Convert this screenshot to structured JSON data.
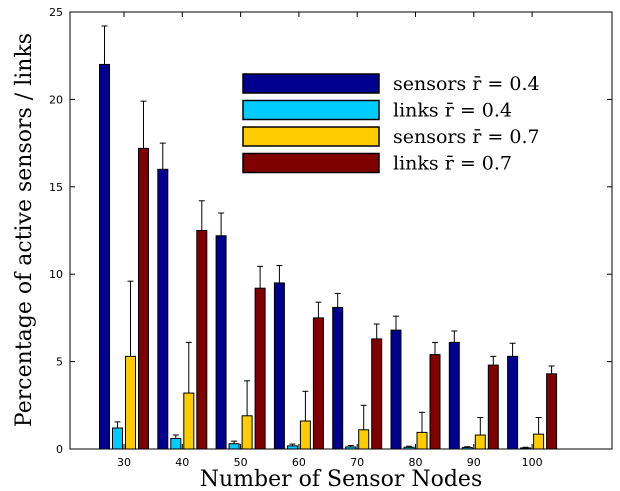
{
  "chart_data": {
    "type": "bar",
    "xlabel": "Number of Sensor Nodes",
    "ylabel": "Percentage of active sensors / links",
    "ylim": [
      0,
      25
    ],
    "yticks": [
      0,
      5,
      10,
      15,
      20,
      25
    ],
    "categories": [
      "30",
      "40",
      "50",
      "60",
      "70",
      "80",
      "90",
      "100"
    ],
    "legend_position": "top-right",
    "grid": false,
    "series": [
      {
        "name": "sensors r̄ = 0.4",
        "color": "#00008f",
        "values": [
          22.0,
          16.0,
          12.2,
          9.5,
          8.1,
          6.8,
          6.1,
          5.3
        ],
        "errors": [
          2.2,
          1.5,
          1.3,
          1.0,
          0.8,
          0.8,
          0.65,
          0.75
        ]
      },
      {
        "name": "links r̄ = 0.4",
        "color": "#00ccff",
        "values": [
          1.2,
          0.6,
          0.3,
          0.18,
          0.12,
          0.1,
          0.08,
          0.06
        ],
        "errors": [
          0.35,
          0.2,
          0.15,
          0.1,
          0.08,
          0.06,
          0.05,
          0.04
        ]
      },
      {
        "name": "sensors r̄ = 0.7",
        "color": "#ffcc00",
        "values": [
          5.3,
          3.2,
          1.9,
          1.6,
          1.1,
          0.95,
          0.8,
          0.85
        ],
        "errors": [
          4.3,
          2.9,
          2.0,
          1.7,
          1.4,
          1.15,
          1.0,
          0.95
        ]
      },
      {
        "name": "links r̄ = 0.7",
        "color": "#800000",
        "values": [
          17.2,
          12.5,
          9.2,
          7.5,
          6.3,
          5.4,
          4.8,
          4.3
        ],
        "errors": [
          2.7,
          1.7,
          1.25,
          0.9,
          0.85,
          0.7,
          0.5,
          0.45
        ]
      }
    ]
  }
}
